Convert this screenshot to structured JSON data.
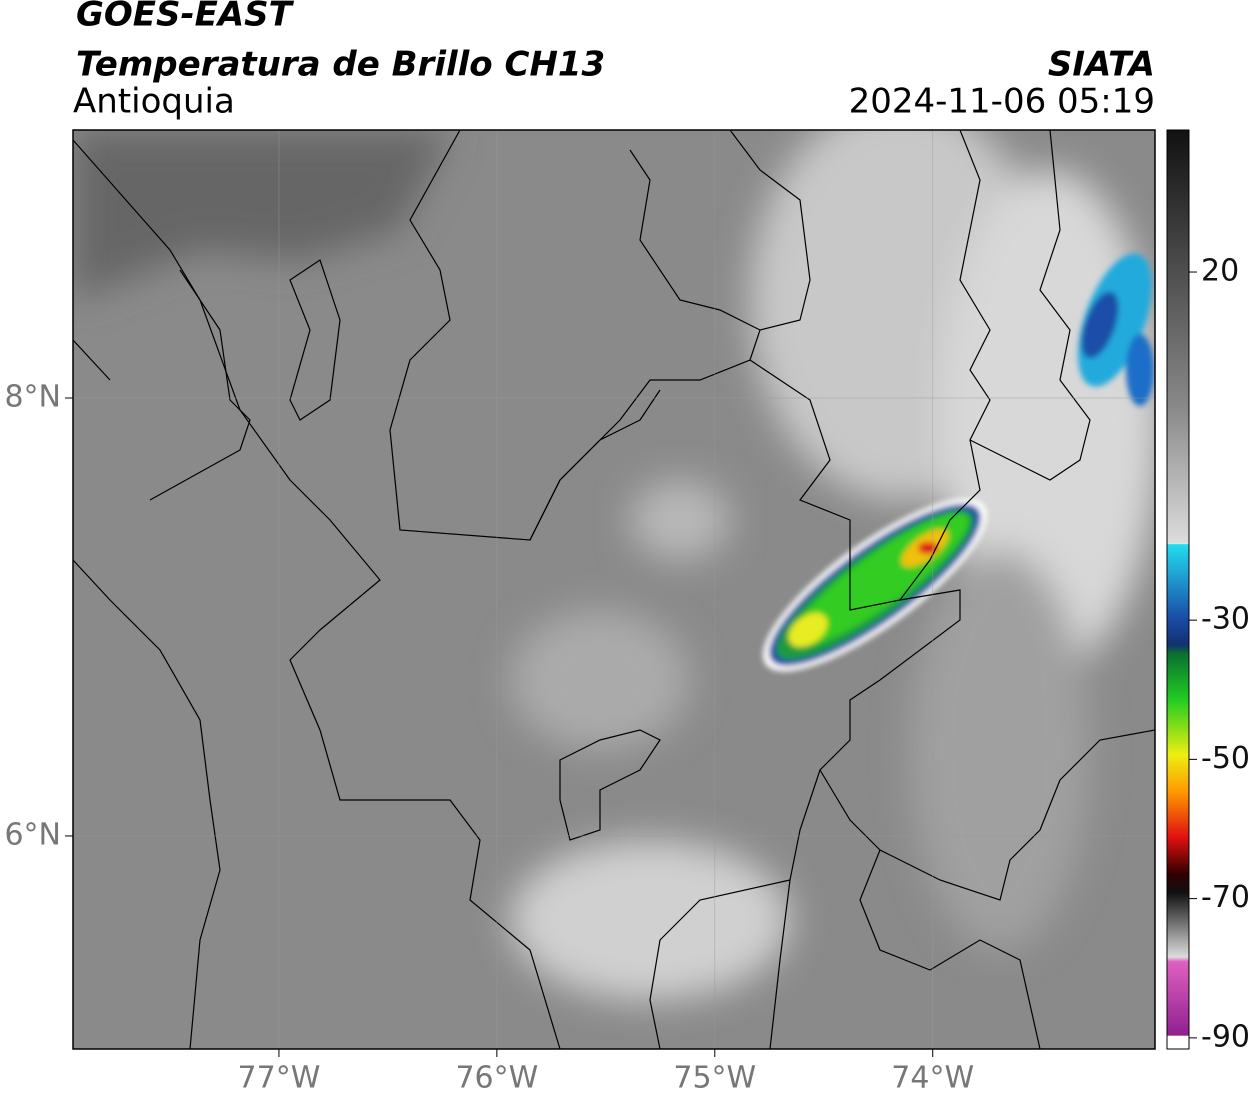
{
  "header": {
    "title": "GOES-EAST",
    "subtitle": "Temperatura de Brillo CH13",
    "region": "Antioquia",
    "source": "SIATA",
    "datetime": "2024-11-06 05:19"
  },
  "map": {
    "xlim": [
      -77.945,
      -72.98
    ],
    "ylim": [
      5.027,
      9.224
    ],
    "xticks": [
      {
        "value": -77,
        "label": "77°W"
      },
      {
        "value": -76,
        "label": "76°W"
      },
      {
        "value": -75,
        "label": "75°W"
      },
      {
        "value": -74,
        "label": "74°W"
      }
    ],
    "yticks": [
      {
        "value": 8,
        "label": "8°N"
      },
      {
        "value": 6,
        "label": "6°N"
      }
    ],
    "grid": true
  },
  "colorbar": {
    "lim": [
      -91.6,
      40.4
    ],
    "ticks": [
      20,
      -30,
      -50,
      -70,
      -90
    ]
  }
}
